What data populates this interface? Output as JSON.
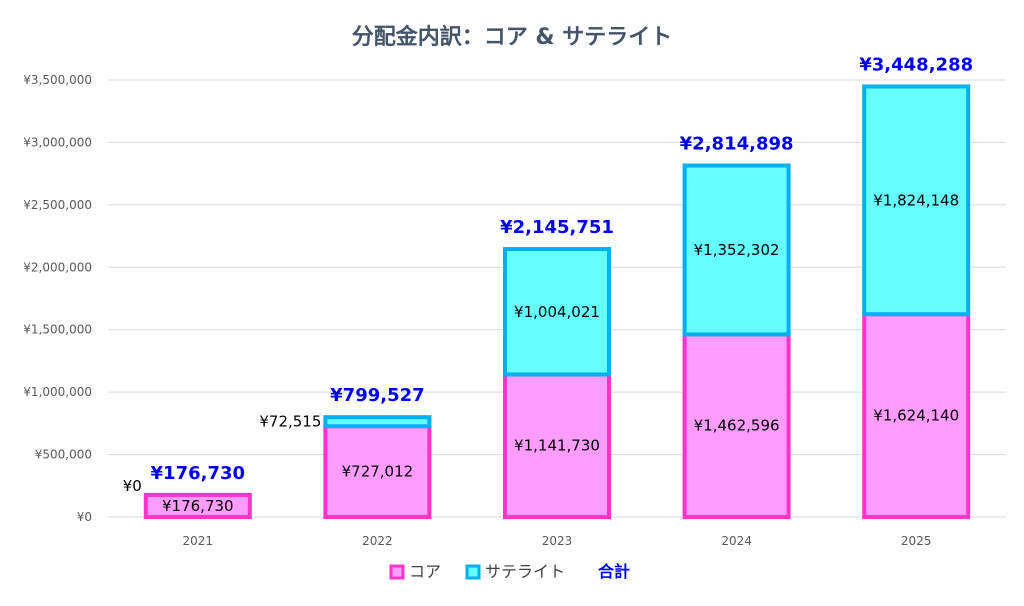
{
  "chart_data": {
    "type": "bar",
    "stacked": true,
    "title": "分配金内訳：コア & サテライト",
    "categories": [
      "2021",
      "2022",
      "2023",
      "2024",
      "2025"
    ],
    "series": [
      {
        "name": "コア",
        "values": [
          176730,
          727012,
          1141730,
          1462596,
          1624140
        ],
        "labels": [
          "¥176,730",
          "¥727,012",
          "¥1,141,730",
          "¥1,462,596",
          "¥1,624,140"
        ],
        "fill": "#ff9cff",
        "stroke": "#ff33cc"
      },
      {
        "name": "サテライト",
        "values": [
          0,
          72515,
          1004021,
          1352302,
          1824148
        ],
        "labels": [
          "¥0",
          "¥72,515",
          "¥1,004,021",
          "¥1,352,302",
          "¥1,824,148"
        ],
        "fill": "#66ffff",
        "stroke": "#00b0f0"
      }
    ],
    "totals": {
      "name": "合計",
      "values": [
        176730,
        799527,
        2145751,
        2814898,
        3448288
      ],
      "labels": [
        "¥176,730",
        "¥799,527",
        "¥2,145,751",
        "¥2,814,898",
        "¥3,448,288"
      ],
      "color": "#0000ee"
    },
    "ylim": [
      0,
      3500000
    ],
    "yticks": [
      0,
      500000,
      1000000,
      1500000,
      2000000,
      2500000,
      3000000,
      3500000
    ],
    "ytick_labels": [
      "¥0",
      "¥500,000",
      "¥1,000,000",
      "¥1,500,000",
      "¥2,000,000",
      "¥2,500,000",
      "¥3,000,000",
      "¥3,500,000"
    ],
    "xlabel": "",
    "ylabel": "",
    "grid": true,
    "legend_position": "bottom"
  }
}
